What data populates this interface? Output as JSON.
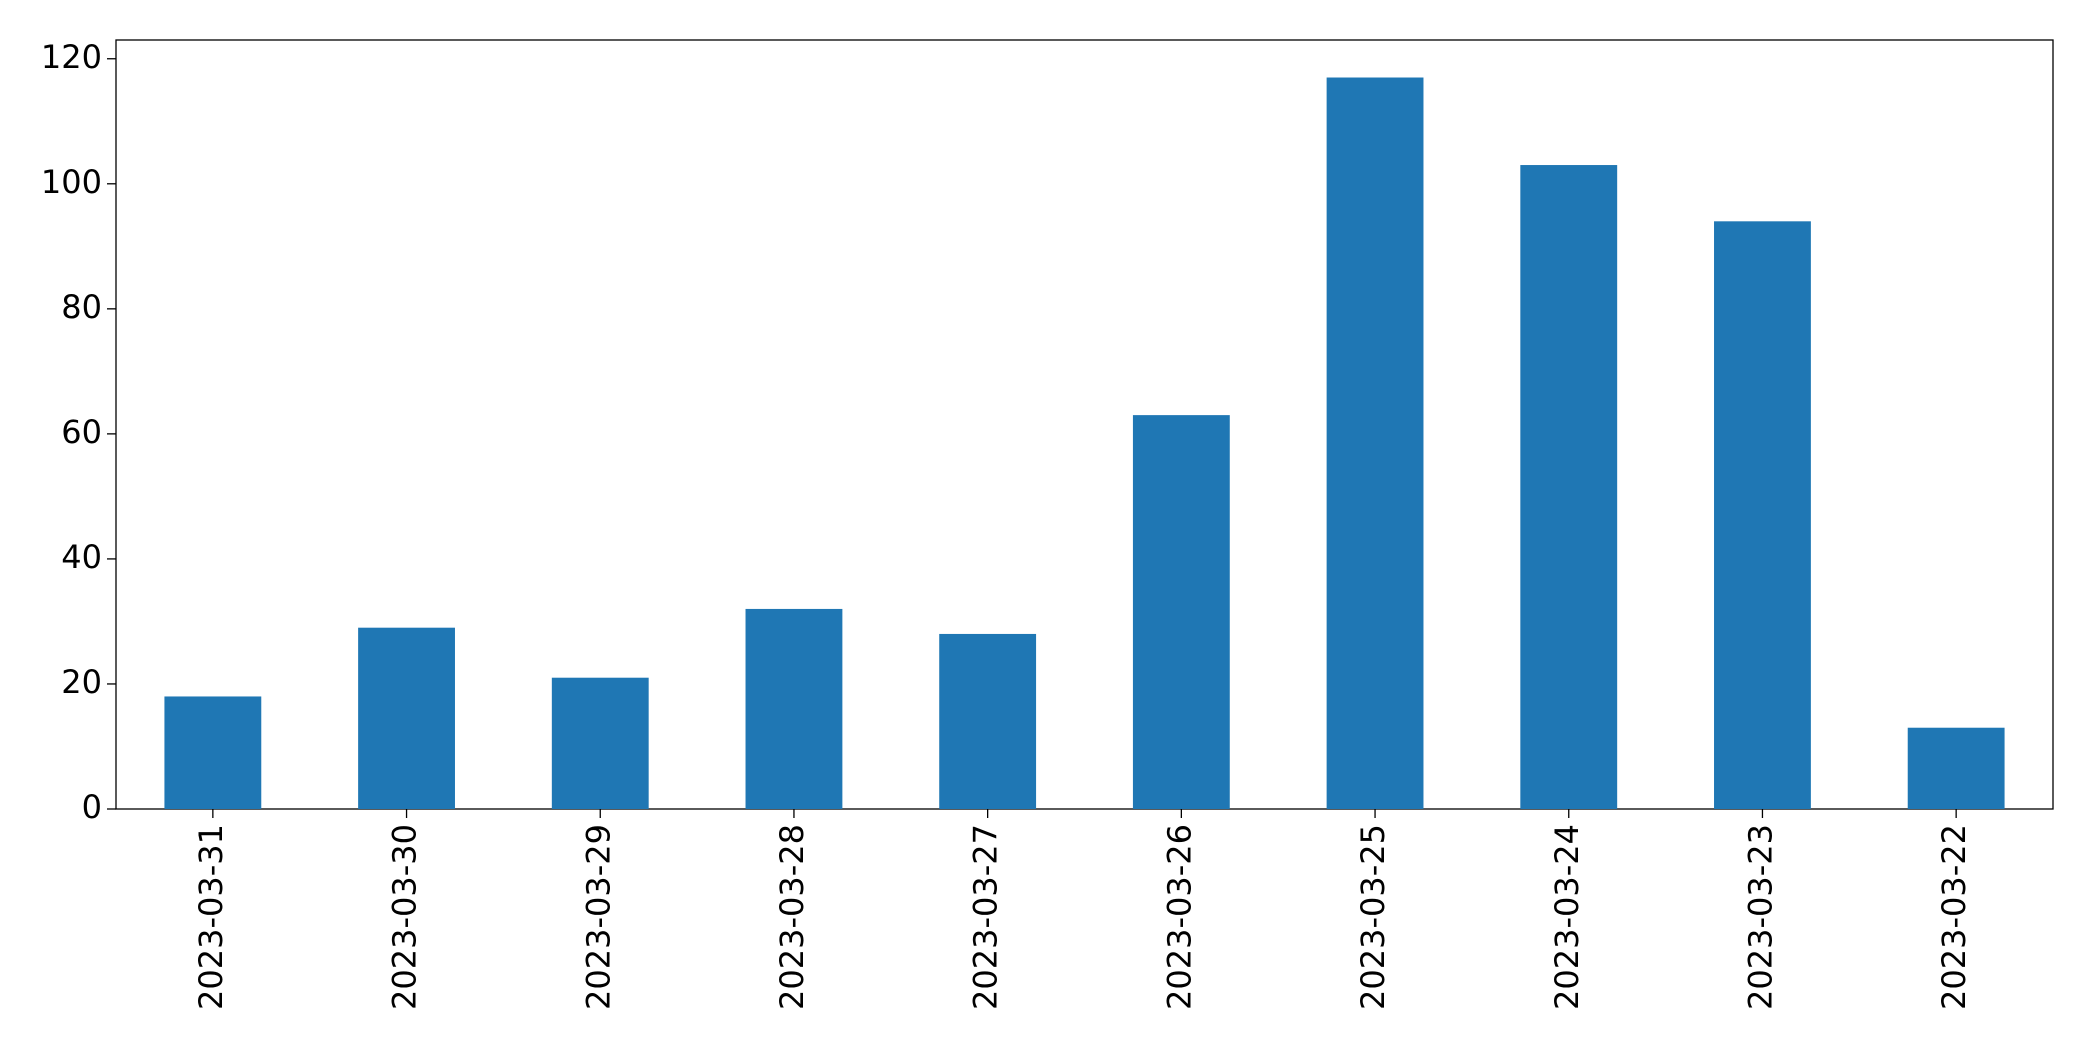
{
  "chart_data": {
    "type": "bar",
    "categories": [
      "2023-03-31",
      "2023-03-30",
      "2023-03-29",
      "2023-03-28",
      "2023-03-27",
      "2023-03-26",
      "2023-03-25",
      "2023-03-24",
      "2023-03-23",
      "2023-03-22"
    ],
    "values": [
      18,
      29,
      21,
      32,
      28,
      63,
      117,
      103,
      94,
      13
    ],
    "color": "#1f77b4",
    "ylim": [
      0,
      123
    ],
    "yticks": [
      0,
      20,
      40,
      60,
      80,
      100,
      120
    ],
    "grid": false
  }
}
